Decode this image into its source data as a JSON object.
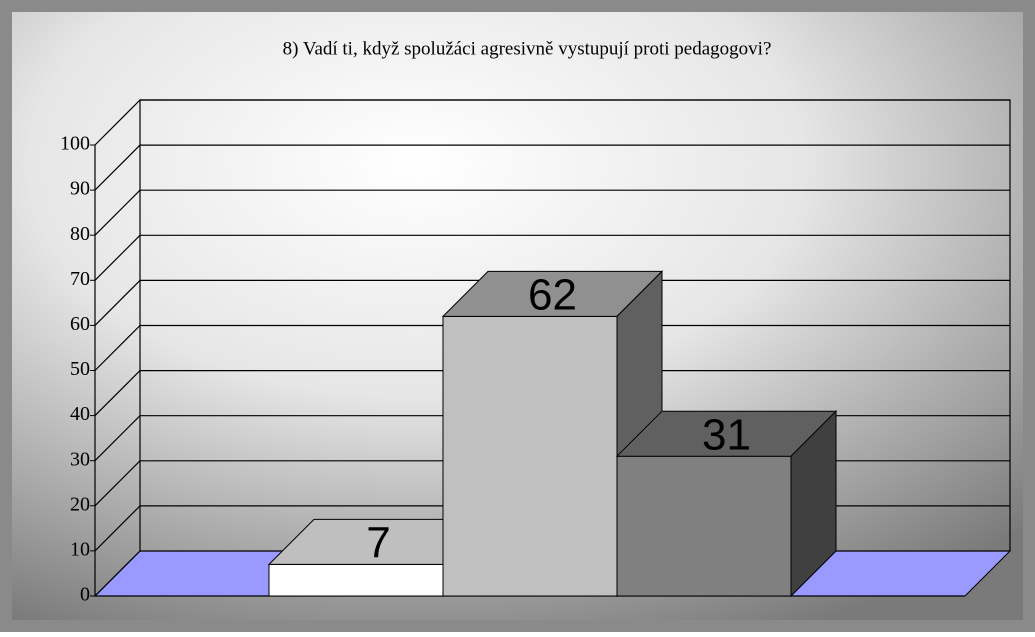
{
  "chart_data": {
    "type": "bar3d",
    "title": "8) Vadí ti, když spolužáci agresivně vystupují proti pedagogovi?",
    "categories": [
      null,
      null,
      null
    ],
    "values": [
      7,
      62,
      31
    ],
    "colors": [
      "#ffffff",
      "#c0c0c0",
      "#808080"
    ],
    "floor_color": "#9999ff",
    "ylim": [
      0,
      100
    ],
    "yticks": [
      0,
      10,
      20,
      30,
      40,
      50,
      60,
      70,
      80,
      90,
      100
    ],
    "grid": true
  }
}
